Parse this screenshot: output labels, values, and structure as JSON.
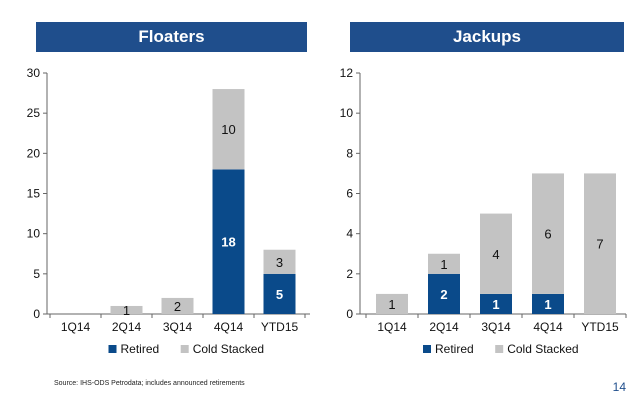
{
  "colors": {
    "retired": "#0a4a8a",
    "cold_stacked": "#c3c3c3",
    "banner": "#1f4e8c"
  },
  "chart_data": [
    {
      "type": "bar",
      "stacked": true,
      "title": "Floaters",
      "categories": [
        "1Q14",
        "2Q14",
        "3Q14",
        "4Q14",
        "YTD15"
      ],
      "series": [
        {
          "name": "Retired",
          "values": [
            0,
            0,
            0,
            18,
            5
          ]
        },
        {
          "name": "Cold Stacked",
          "values": [
            0,
            1,
            2,
            10,
            3
          ]
        }
      ],
      "yticks": [
        0,
        5,
        10,
        15,
        20,
        25,
        30
      ],
      "ylim": [
        0,
        30
      ],
      "legend": "bottom"
    },
    {
      "type": "bar",
      "stacked": true,
      "title": "Jackups",
      "categories": [
        "1Q14",
        "2Q14",
        "3Q14",
        "4Q14",
        "YTD15"
      ],
      "series": [
        {
          "name": "Retired",
          "values": [
            0,
            2,
            1,
            1,
            0
          ]
        },
        {
          "name": "Cold Stacked",
          "values": [
            1,
            1,
            4,
            6,
            7
          ]
        }
      ],
      "yticks": [
        0,
        2,
        4,
        6,
        8,
        10,
        12
      ],
      "ylim": [
        0,
        12
      ],
      "legend": "bottom"
    }
  ],
  "footer": {
    "source": "Source: IHS-ODS Petrodata; includes announced retirements",
    "page_number": "14"
  }
}
